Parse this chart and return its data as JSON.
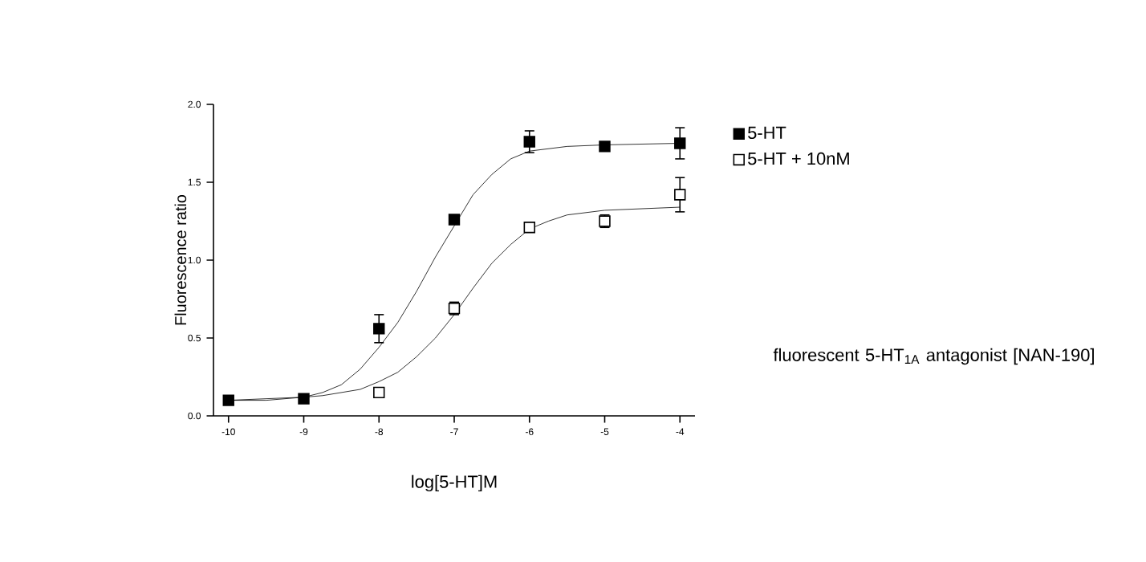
{
  "chart_data": {
    "type": "scatter",
    "xlabel": "log[5-HT]M",
    "ylabel": "Fluorescence ratio",
    "xlim": [
      -10.2,
      -3.8
    ],
    "xticks": [
      -10,
      -9,
      -8,
      -7,
      -6,
      -5,
      -4
    ],
    "ylim": [
      0,
      2.0
    ],
    "yticks": [
      {
        "value": 0,
        "label": "0.0"
      },
      {
        "value": 0.5,
        "label": "0.5"
      },
      {
        "value": 1.0,
        "label": "1.0"
      },
      {
        "value": 1.5,
        "label": "1.5"
      },
      {
        "value": 2.0,
        "label": "2.0"
      }
    ],
    "grid": false,
    "legend": "right",
    "annotations": [
      "fluorescent 5-HT$_{1A}$ antagonist [NAN-190]"
    ],
    "series": [
      {
        "name": "5-HT",
        "color": "#000000",
        "marker": "square",
        "x": [
          -10,
          -9,
          -8,
          -7,
          -6,
          -5,
          -4
        ],
        "values": [
          0.1,
          0.11,
          0.56,
          1.26,
          1.76,
          1.73,
          1.75
        ],
        "errors": [
          null,
          null,
          0.09,
          null,
          0.07,
          null,
          0.1
        ]
      },
      {
        "name": "5-HT + 10nM",
        "color": "#000000",
        "marker": "square",
        "x": [
          -8,
          -7,
          -6,
          -5,
          -4
        ],
        "values": [
          0.15,
          0.69,
          1.21,
          1.25,
          1.42
        ],
        "errors": [
          null,
          0.04,
          null,
          0.04,
          0.11
        ]
      },
      {
        "type": "line",
        "color": "#000000",
        "x": [
          -10,
          -9.5,
          -9,
          -8.75,
          -8.5,
          -8.25,
          -8,
          -7.75,
          -7.5,
          -7.25,
          -7,
          -6.75,
          -6.5,
          -6.25,
          -6,
          -5.5,
          -5,
          -4
        ],
        "values": [
          0.1,
          0.1,
          0.12,
          0.15,
          0.2,
          0.3,
          0.44,
          0.6,
          0.8,
          1.02,
          1.22,
          1.42,
          1.55,
          1.65,
          1.7,
          1.73,
          1.74,
          1.75
        ]
      },
      {
        "type": "line",
        "color": "#000000",
        "x": [
          -10,
          -9,
          -8.75,
          -8.5,
          -8.25,
          -8,
          -7.75,
          -7.5,
          -7.25,
          -7,
          -6.75,
          -6.5,
          -6.25,
          -6,
          -5.75,
          -5.5,
          -5,
          -4
        ],
        "values": [
          0.1,
          0.12,
          0.13,
          0.15,
          0.17,
          0.22,
          0.28,
          0.38,
          0.5,
          0.65,
          0.82,
          0.98,
          1.1,
          1.2,
          1.25,
          1.29,
          1.32,
          1.34
        ]
      }
    ]
  }
}
